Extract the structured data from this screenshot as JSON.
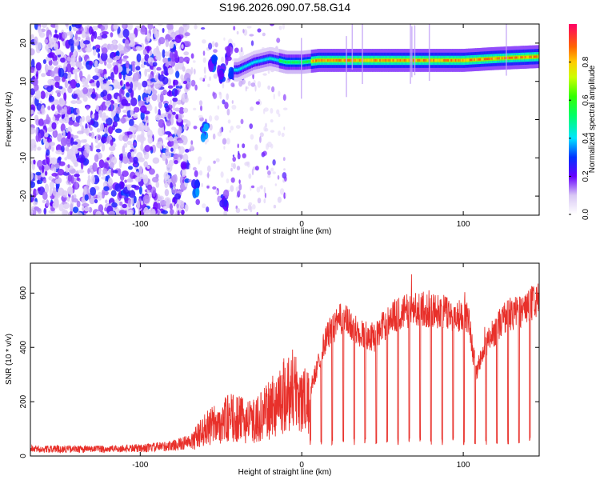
{
  "title": "S196.2026.090.07.58.G14",
  "chart_data": [
    {
      "type": "heatmap",
      "xlabel": "Height of straight line (km)",
      "ylabel": "Frequency (Hz)",
      "xlim": [
        -168,
        147
      ],
      "ylim": [
        -25,
        25
      ],
      "xticks": [
        -100,
        0,
        100
      ],
      "yticks": [
        -20,
        -10,
        0,
        10,
        20
      ],
      "colorbar": {
        "label": "Normalized spectral amplitude",
        "range": [
          0,
          1
        ],
        "ticks": [
          0.0,
          0.2,
          0.4,
          0.6,
          0.8
        ]
      },
      "ridge": [
        {
          "x": -40,
          "y": 13
        },
        {
          "x": -30,
          "y": 15
        },
        {
          "x": -20,
          "y": 16
        },
        {
          "x": -10,
          "y": 15
        },
        {
          "x": 0,
          "y": 15
        },
        {
          "x": 10,
          "y": 15.5
        },
        {
          "x": 40,
          "y": 15.5
        },
        {
          "x": 80,
          "y": 15.5
        },
        {
          "x": 100,
          "y": 15.5
        },
        {
          "x": 120,
          "y": 16
        },
        {
          "x": 147,
          "y": 16.5
        }
      ]
    },
    {
      "type": "line",
      "xlabel": "Height of straight line (km)",
      "ylabel": "SNR (10 * v/v)",
      "xlim": [
        -168,
        147
      ],
      "ylim": [
        0,
        710
      ],
      "xticks": [
        -100,
        0,
        100
      ],
      "yticks": [
        0,
        200,
        400,
        600
      ],
      "color": "#e8302a",
      "envelope": [
        {
          "x": -168,
          "y": 30
        },
        {
          "x": -120,
          "y": 30
        },
        {
          "x": -95,
          "y": 35
        },
        {
          "x": -80,
          "y": 45
        },
        {
          "x": -70,
          "y": 60
        },
        {
          "x": -60,
          "y": 140
        },
        {
          "x": -45,
          "y": 200
        },
        {
          "x": -30,
          "y": 180
        },
        {
          "x": -20,
          "y": 240
        },
        {
          "x": -10,
          "y": 330
        },
        {
          "x": -5,
          "y": 360
        },
        {
          "x": 0,
          "y": 300
        },
        {
          "x": 5,
          "y": 260
        },
        {
          "x": 15,
          "y": 480
        },
        {
          "x": 25,
          "y": 560
        },
        {
          "x": 35,
          "y": 500
        },
        {
          "x": 45,
          "y": 480
        },
        {
          "x": 55,
          "y": 560
        },
        {
          "x": 70,
          "y": 600
        },
        {
          "x": 90,
          "y": 580
        },
        {
          "x": 103,
          "y": 560
        },
        {
          "x": 108,
          "y": 340
        },
        {
          "x": 115,
          "y": 460
        },
        {
          "x": 125,
          "y": 560
        },
        {
          "x": 140,
          "y": 600
        },
        {
          "x": 147,
          "y": 640
        }
      ]
    }
  ]
}
